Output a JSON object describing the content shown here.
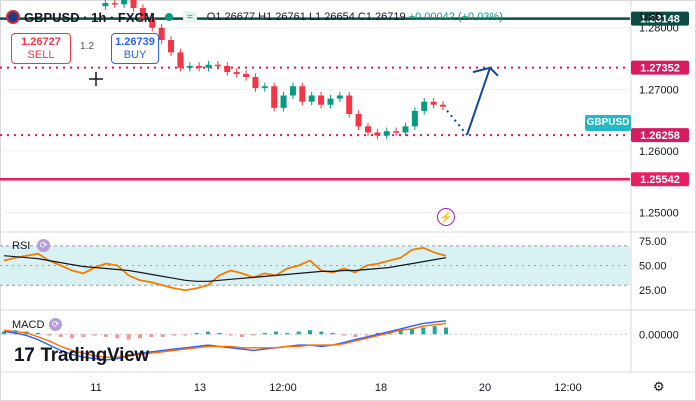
{
  "header": {
    "symbol": "GBPUSD · 1h · FXCM",
    "market_icon": "≈",
    "ohlc": {
      "open": "O1.26677",
      "high": "H1.26761",
      "low": "L1.26654",
      "close": "C1.26719",
      "change": "+0.00042 (+0.03%)"
    }
  },
  "trade": {
    "sell_price": "1.26727",
    "sell_label": "SELL",
    "spread": "1.2",
    "buy_price": "1.26739",
    "buy_label": "BUY"
  },
  "currency": "USD",
  "pair_label": "GBPUSD",
  "branding": {
    "mark": "17",
    "name": "TradingView"
  },
  "icons": {
    "crosshair": "crosshair-icon",
    "lightning": "lightning-icon",
    "settings": "gear-icon",
    "market": "market-status-icon"
  },
  "chart_data": [
    {
      "type": "line",
      "title": "",
      "ylim": [
        1.2475,
        1.2845
      ],
      "y_ticks": [
        "1.28000",
        "1.27000",
        "1.26000",
        "1.25000"
      ],
      "x_ticks": [
        "11",
        "13",
        "12:00",
        "18",
        "20",
        "12:00"
      ],
      "series": [
        {
          "values": [
            1.2835,
            1.284,
            1.2838,
            1.2845,
            1.2832,
            1.2815,
            1.28,
            1.278,
            1.276,
            1.2735,
            1.2738,
            1.2735,
            1.274,
            1.2738,
            1.2728,
            1.2725,
            1.272,
            1.2702,
            1.2705,
            1.267,
            1.269,
            1.2705,
            1.268,
            1.269,
            1.2675,
            1.2685,
            1.269,
            1.266,
            1.264,
            1.263,
            1.2625,
            1.2632,
            1.263,
            1.264,
            1.2665,
            1.268,
            1.2675,
            1.2672
          ]
        }
      ],
      "price_levels": [
        {
          "value": 1.28148,
          "label": "1.28148",
          "style": "solid",
          "color": "#0b4d45"
        },
        {
          "value": 1.27352,
          "label": "1.27352",
          "style": "dotted",
          "color": "#d81b60"
        },
        {
          "value": 1.26258,
          "label": "1.26258",
          "style": "dotted",
          "color": "#d81b60"
        },
        {
          "value": 1.25542,
          "label": "1.25542",
          "style": "solid",
          "color": "#e91e63"
        }
      ],
      "annotation_arrow_color": "#0d47a1"
    },
    {
      "type": "line",
      "title": "RSI",
      "ylim": [
        15,
        80
      ],
      "y_ticks": [
        "75.00",
        "50.00",
        "25.00"
      ],
      "band": [
        30,
        70
      ],
      "series": [
        {
          "values": [
            55,
            58,
            60,
            62,
            55,
            50,
            45,
            42,
            48,
            52,
            50,
            40,
            35,
            33,
            30,
            27,
            25,
            27,
            30,
            40,
            45,
            42,
            38,
            42,
            40,
            47,
            50,
            55,
            45,
            43,
            47,
            43,
            50,
            52,
            55,
            58,
            66,
            68,
            63,
            60
          ]
        },
        {
          "values": [
            60,
            59,
            58,
            57,
            55,
            53,
            51,
            49,
            48,
            47,
            46,
            45,
            43,
            41,
            39,
            37,
            35,
            34,
            34,
            35,
            36,
            37,
            38,
            39,
            40,
            41,
            42,
            43,
            44,
            44,
            45,
            45,
            46,
            47,
            48,
            50,
            52,
            54,
            56,
            58
          ]
        }
      ]
    },
    {
      "type": "bar",
      "title": "MACD",
      "ylim": [
        -0.0025,
        0.0015
      ],
      "y_ticks": [
        "0.00000"
      ],
      "histogram": [
        0.0002,
        0.0003,
        0.0002,
        0.0001,
        -0.0001,
        -0.0002,
        -0.0003,
        -0.0002,
        -0.0001,
        -0.0002,
        -0.0003,
        -0.0004,
        -0.0003,
        -0.0002,
        -0.0002,
        -0.0001,
        -0.0001,
        0.0001,
        0.0002,
        0.0001,
        -0.0001,
        -0.0002,
        -0.0001,
        0.0001,
        0.0002,
        0.0001,
        0.0002,
        0.0003,
        0.0002,
        0.0001,
        -0.0001,
        -0.0002,
        -0.0001,
        0.0001,
        0.0002,
        0.0003,
        0.0004,
        0.0005,
        0.0006,
        0.0005
      ],
      "series": [
        {
          "values": [
            0.0002,
            0.0001,
            -0.0001,
            -0.0004,
            -0.0008,
            -0.0012,
            -0.0015,
            -0.0017,
            -0.0018,
            -0.0019,
            -0.0018,
            -0.0016,
            -0.0014,
            -0.0013,
            -0.0012,
            -0.0011,
            -0.001,
            -0.0009,
            -0.0008,
            -0.0009,
            -0.001,
            -0.0011,
            -0.0012,
            -0.0011,
            -0.001,
            -0.0009,
            -0.0008,
            -0.0008,
            -0.0009,
            -0.0008,
            -0.0006,
            -0.0004,
            -0.0002,
            0.0,
            0.0002,
            0.0004,
            0.0006,
            0.0008,
            0.0009,
            0.001
          ]
        },
        {
          "values": [
            0.0003,
            0.0002,
            0.0001,
            -0.0002,
            -0.0005,
            -0.0009,
            -0.0012,
            -0.0014,
            -0.0016,
            -0.0017,
            -0.0017,
            -0.0016,
            -0.0015,
            -0.0014,
            -0.0013,
            -0.0012,
            -0.0011,
            -0.001,
            -0.0009,
            -0.0009,
            -0.0009,
            -0.001,
            -0.001,
            -0.001,
            -0.001,
            -0.0009,
            -0.0009,
            -0.0008,
            -0.0008,
            -0.0008,
            -0.0007,
            -0.0005,
            -0.0003,
            -0.0001,
            0.0001,
            0.0003,
            0.0004,
            0.0006,
            0.0007,
            0.0008
          ]
        }
      ]
    }
  ]
}
